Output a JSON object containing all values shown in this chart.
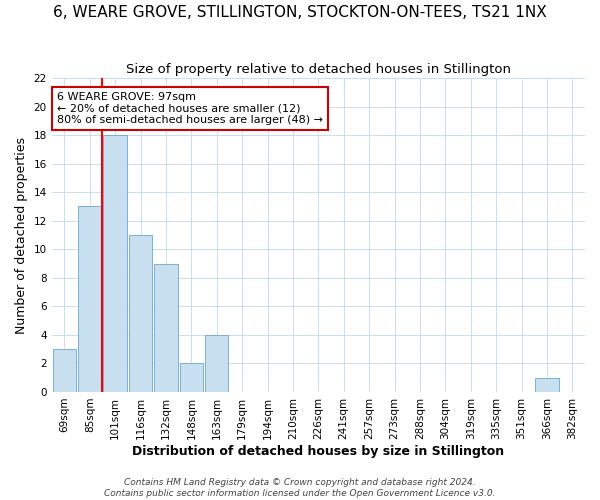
{
  "title": "6, WEARE GROVE, STILLINGTON, STOCKTON-ON-TEES, TS21 1NX",
  "subtitle": "Size of property relative to detached houses in Stillington",
  "xlabel": "Distribution of detached houses by size in Stillington",
  "ylabel": "Number of detached properties",
  "bar_labels": [
    "69sqm",
    "85sqm",
    "101sqm",
    "116sqm",
    "132sqm",
    "148sqm",
    "163sqm",
    "179sqm",
    "194sqm",
    "210sqm",
    "226sqm",
    "241sqm",
    "257sqm",
    "273sqm",
    "288sqm",
    "304sqm",
    "319sqm",
    "335sqm",
    "351sqm",
    "366sqm",
    "382sqm"
  ],
  "bar_values": [
    3,
    13,
    18,
    11,
    9,
    2,
    4,
    0,
    0,
    0,
    0,
    0,
    0,
    0,
    0,
    0,
    0,
    0,
    0,
    1,
    0
  ],
  "bar_fill_color": "#c8dff0",
  "bar_edge_color": "#7ab0d4",
  "red_line_index": 2,
  "ylim": [
    0,
    22
  ],
  "yticks": [
    0,
    2,
    4,
    6,
    8,
    10,
    12,
    14,
    16,
    18,
    20,
    22
  ],
  "annotation_title": "6 WEARE GROVE: 97sqm",
  "annotation_line1": "← 20% of detached houses are smaller (12)",
  "annotation_line2": "80% of semi-detached houses are larger (48) →",
  "footer_line1": "Contains HM Land Registry data © Crown copyright and database right 2024.",
  "footer_line2": "Contains public sector information licensed under the Open Government Licence v3.0.",
  "background_color": "#ffffff",
  "grid_color": "#c8dff0",
  "title_fontsize": 11,
  "subtitle_fontsize": 9.5,
  "axis_label_fontsize": 9,
  "tick_fontsize": 7.5,
  "annotation_fontsize": 8,
  "footer_fontsize": 6.5,
  "annotation_box_color": "#ffffff",
  "annotation_box_edge": "#cc0000"
}
